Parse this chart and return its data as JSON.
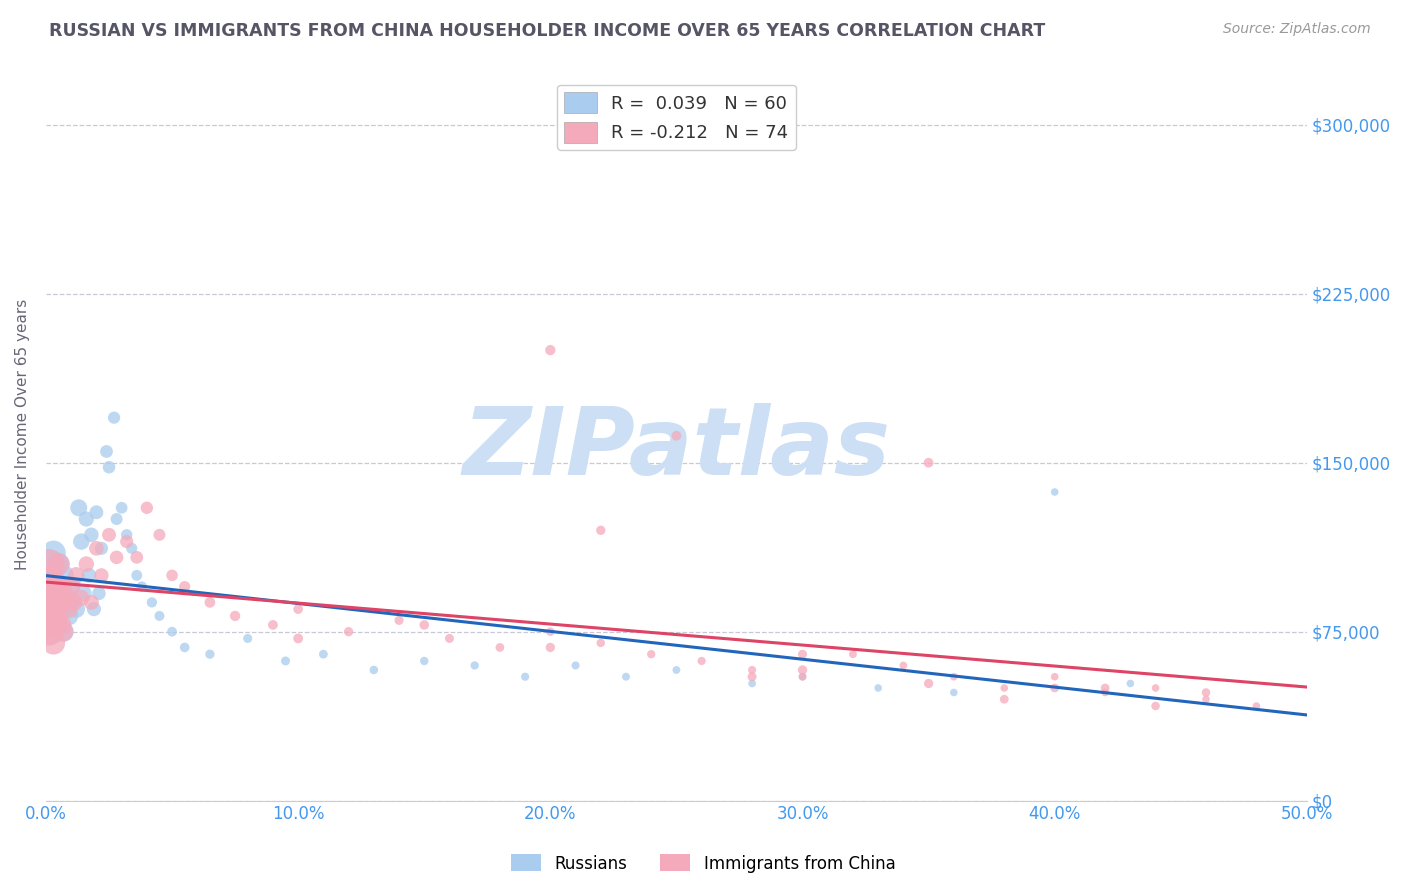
{
  "title": "RUSSIAN VS IMMIGRANTS FROM CHINA HOUSEHOLDER INCOME OVER 65 YEARS CORRELATION CHART",
  "source": "Source: ZipAtlas.com",
  "ylabel": "Householder Income Over 65 years",
  "xlim": [
    0.0,
    0.5
  ],
  "ylim": [
    0,
    325000
  ],
  "xtick_labels": [
    "0.0%",
    "10.0%",
    "20.0%",
    "30.0%",
    "40.0%",
    "50.0%"
  ],
  "xtick_values": [
    0.0,
    0.1,
    0.2,
    0.3,
    0.4,
    0.5
  ],
  "ytick_values": [
    0,
    75000,
    150000,
    225000,
    300000
  ],
  "ytick_labels": [
    "$0",
    "$75,000",
    "$150,000",
    "$225,000",
    "$300,000"
  ],
  "gridline_color": "#bbbbcc",
  "background_color": "#ffffff",
  "title_color": "#555566",
  "axis_label_color": "#666677",
  "tick_label_color": "#4499ee",
  "watermark_text": "ZIPatlas",
  "watermark_color": "#ccdff5",
  "legend_r1": "R =  0.039",
  "legend_n1": "N = 60",
  "legend_r2": "R = -0.212",
  "legend_n2": "N = 74",
  "russian_color": "#aaccee",
  "china_color": "#f5aabb",
  "russian_line_color": "#2266bb",
  "china_line_color": "#dd4466",
  "legend_label1": "Russians",
  "legend_label2": "Immigrants from China",
  "russians_x": [
    0.001,
    0.001,
    0.002,
    0.002,
    0.002,
    0.003,
    0.003,
    0.004,
    0.004,
    0.005,
    0.005,
    0.006,
    0.006,
    0.007,
    0.007,
    0.008,
    0.009,
    0.01,
    0.01,
    0.012,
    0.013,
    0.014,
    0.015,
    0.016,
    0.017,
    0.018,
    0.019,
    0.02,
    0.021,
    0.022,
    0.024,
    0.025,
    0.027,
    0.028,
    0.03,
    0.032,
    0.034,
    0.036,
    0.038,
    0.042,
    0.045,
    0.05,
    0.055,
    0.065,
    0.08,
    0.095,
    0.11,
    0.13,
    0.15,
    0.17,
    0.19,
    0.21,
    0.23,
    0.25,
    0.28,
    0.3,
    0.33,
    0.36,
    0.4,
    0.43
  ],
  "russians_y": [
    95000,
    80000,
    105000,
    88000,
    75000,
    95000,
    110000,
    90000,
    78000,
    105000,
    88000,
    95000,
    85000,
    100000,
    75000,
    90000,
    82000,
    95000,
    88000,
    85000,
    130000,
    115000,
    92000,
    125000,
    100000,
    118000,
    85000,
    128000,
    92000,
    112000,
    155000,
    148000,
    170000,
    125000,
    130000,
    118000,
    112000,
    100000,
    95000,
    88000,
    82000,
    75000,
    68000,
    65000,
    72000,
    62000,
    65000,
    58000,
    62000,
    60000,
    55000,
    60000,
    55000,
    58000,
    52000,
    55000,
    50000,
    48000,
    137000,
    52000
  ],
  "russians_size": [
    500,
    450,
    400,
    380,
    350,
    330,
    310,
    290,
    270,
    260,
    250,
    240,
    230,
    220,
    210,
    200,
    190,
    180,
    170,
    160,
    150,
    140,
    130,
    120,
    115,
    110,
    105,
    100,
    95,
    90,
    85,
    82,
    78,
    75,
    72,
    68,
    65,
    62,
    58,
    55,
    52,
    50,
    48,
    45,
    43,
    42,
    40,
    38,
    37,
    36,
    35,
    34,
    33,
    32,
    31,
    30,
    30,
    30,
    30,
    30
  ],
  "china_x": [
    0.001,
    0.001,
    0.001,
    0.002,
    0.002,
    0.002,
    0.003,
    0.003,
    0.003,
    0.004,
    0.004,
    0.005,
    0.005,
    0.006,
    0.006,
    0.007,
    0.007,
    0.008,
    0.009,
    0.01,
    0.011,
    0.012,
    0.014,
    0.016,
    0.018,
    0.02,
    0.022,
    0.025,
    0.028,
    0.032,
    0.036,
    0.04,
    0.045,
    0.05,
    0.055,
    0.065,
    0.075,
    0.09,
    0.1,
    0.12,
    0.14,
    0.16,
    0.18,
    0.2,
    0.22,
    0.24,
    0.26,
    0.28,
    0.3,
    0.32,
    0.34,
    0.36,
    0.38,
    0.4,
    0.42,
    0.44,
    0.46,
    0.48,
    0.2,
    0.25,
    0.3,
    0.35,
    0.38,
    0.42,
    0.46,
    0.1,
    0.15,
    0.2,
    0.28,
    0.35,
    0.4,
    0.44,
    0.22,
    0.3
  ],
  "china_y": [
    105000,
    90000,
    75000,
    98000,
    85000,
    78000,
    92000,
    82000,
    70000,
    95000,
    80000,
    105000,
    88000,
    95000,
    78000,
    88000,
    75000,
    90000,
    85000,
    95000,
    88000,
    100000,
    90000,
    105000,
    88000,
    112000,
    100000,
    118000,
    108000,
    115000,
    108000,
    130000,
    118000,
    100000,
    95000,
    88000,
    82000,
    78000,
    85000,
    75000,
    80000,
    72000,
    68000,
    75000,
    70000,
    65000,
    62000,
    58000,
    55000,
    65000,
    60000,
    55000,
    50000,
    55000,
    48000,
    50000,
    45000,
    42000,
    200000,
    162000,
    58000,
    52000,
    45000,
    50000,
    48000,
    72000,
    78000,
    68000,
    55000,
    150000,
    50000,
    42000,
    120000,
    65000
  ],
  "china_size": [
    480,
    440,
    410,
    390,
    360,
    340,
    320,
    300,
    280,
    265,
    255,
    245,
    235,
    225,
    215,
    205,
    195,
    185,
    175,
    165,
    155,
    145,
    135,
    125,
    118,
    112,
    106,
    100,
    95,
    90,
    85,
    80,
    75,
    70,
    65,
    60,
    55,
    50,
    48,
    45,
    43,
    42,
    40,
    38,
    37,
    36,
    35,
    34,
    33,
    32,
    31,
    30,
    30,
    30,
    30,
    30,
    30,
    30,
    55,
    50,
    45,
    45,
    40,
    40,
    38,
    50,
    48,
    45,
    42,
    50,
    40,
    38,
    45,
    42
  ]
}
